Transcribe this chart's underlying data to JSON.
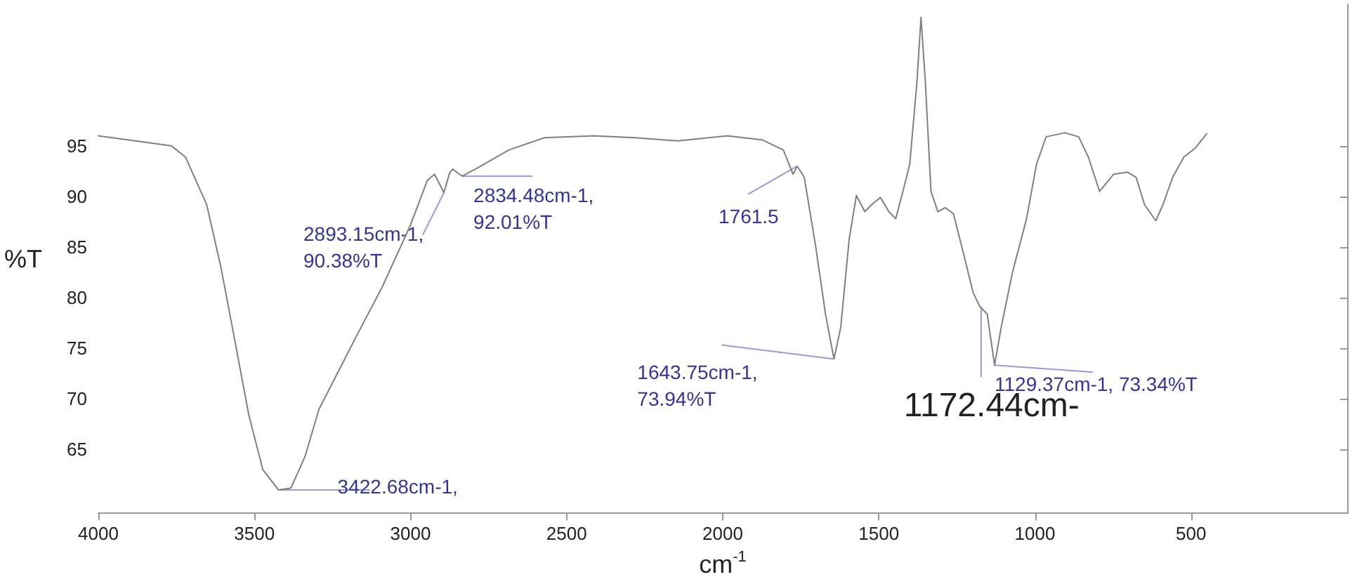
{
  "chart_data": {
    "type": "line",
    "xlabel": "cm$^{-1}$",
    "ylabel": "%T",
    "x": [
      4000,
      3766,
      3721,
      3653,
      3608,
      3563,
      3518,
      3473,
      3422.68,
      3383,
      3338,
      3293,
      3248,
      3180,
      3090,
      3000,
      2946,
      2923,
      2893.15,
      2874,
      2865,
      2834.48,
      2775,
      2685,
      2572,
      2414,
      2279,
      2144,
      1986,
      1874,
      1806,
      1775,
      1761.5,
      1739,
      1703,
      1671,
      1643.75,
      1622,
      1595,
      1572,
      1545,
      1523,
      1495,
      1468,
      1446,
      1423,
      1401,
      1378,
      1365,
      1351,
      1333,
      1311,
      1288,
      1261,
      1230,
      1198,
      1176,
      1153,
      1129.37,
      1108,
      1072,
      1027,
      995,
      964,
      905,
      860,
      829,
      793,
      748,
      703,
      676,
      649,
      613,
      590,
      559,
      523,
      486,
      450
    ],
    "series": [
      {
        "color": "#808080",
        "values": [
          96.0,
          95.0,
          93.9,
          89.2,
          83.1,
          75.8,
          68.4,
          63.0,
          61.0,
          61.2,
          64.3,
          69.0,
          71.7,
          75.8,
          81.1,
          87.2,
          91.6,
          92.2,
          90.38,
          92.4,
          92.7,
          92.01,
          93.0,
          94.6,
          95.8,
          96.0,
          95.8,
          95.5,
          96.0,
          95.6,
          94.6,
          92.2,
          93.0,
          91.9,
          85.2,
          78.4,
          73.94,
          77.1,
          85.8,
          90.1,
          88.5,
          89.2,
          89.9,
          88.5,
          87.8,
          90.5,
          93.2,
          101.3,
          107.7,
          101.3,
          90.5,
          88.5,
          88.9,
          88.3,
          84.5,
          80.5,
          79.1,
          78.4,
          73.34,
          77.1,
          82.5,
          87.8,
          93.2,
          95.9,
          96.3,
          95.9,
          93.9,
          90.5,
          92.2,
          92.4,
          91.9,
          89.2,
          87.6,
          89.2,
          91.9,
          93.9,
          94.8,
          96.2
        ]
      }
    ],
    "xlim": [
      4000,
      0
    ],
    "xticks": [
      4000,
      3500,
      3000,
      2500,
      2000,
      1500,
      1000,
      500
    ],
    "ylim": [
      58.7,
      109
    ],
    "yticks": [
      65,
      70,
      75,
      80,
      85,
      90,
      95
    ],
    "grid": false,
    "marker": "none",
    "line_style": "solid",
    "annotations": [
      {
        "text": "3422.68cm-1,",
        "x": 3422.68,
        "y": 61.0
      },
      {
        "text": "2893.15cm-1,\n90.38%T",
        "x": 2893.15,
        "y": 90.38
      },
      {
        "text": "2834.48cm-1,\n92.01%T",
        "x": 2834.48,
        "y": 92.01
      },
      {
        "text": "1761.5",
        "x": 1761.5,
        "y": 93.0
      },
      {
        "text": "1643.75cm-1,\n73.94%T",
        "x": 1643.75,
        "y": 73.94
      },
      {
        "text": "1129.37cm-1, 73.34%T",
        "x": 1129.37,
        "y": 73.34
      },
      {
        "text": "1172.44cm-",
        "x": 1172.44,
        "y": 79.1
      }
    ]
  }
}
